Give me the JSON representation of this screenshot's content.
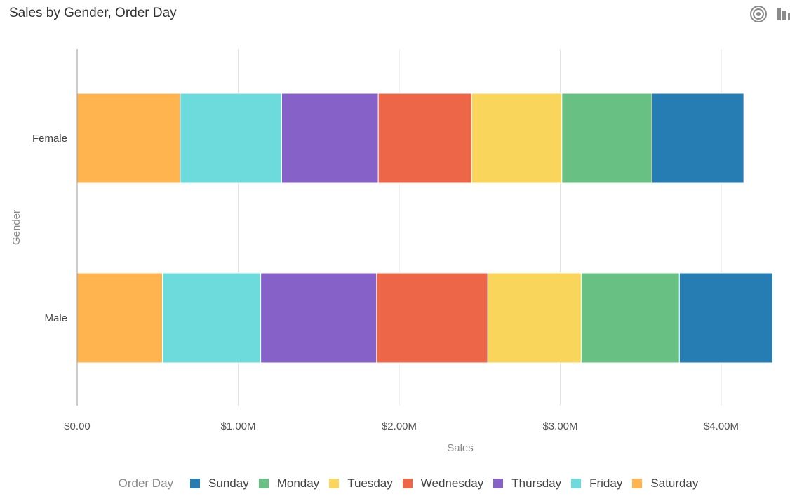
{
  "header": {
    "title": "Sales by Gender, Order Day",
    "target_icon": "target-icon",
    "bar_chart_icon": "bar-chart-icon"
  },
  "colors": {
    "Sunday": "#267db3",
    "Monday": "#68c182",
    "Tuesday": "#fad55c",
    "Wednesday": "#ed6647",
    "Thursday": "#8561c8",
    "Friday": "#6ddbdb",
    "Saturday": "#ffb44f",
    "grid": "#e3e3e3",
    "axis": "#999999"
  },
  "chart_data": {
    "type": "bar",
    "orientation": "horizontal",
    "stacked": true,
    "title": "Sales by Gender, Order Day",
    "xlabel": "Sales",
    "ylabel": "Gender",
    "categories": [
      "Female",
      "Male"
    ],
    "xlim": [
      0,
      4.2
    ],
    "x_unit": "millions",
    "x_ticks": [
      0,
      1,
      2,
      3,
      4
    ],
    "x_tick_labels": [
      "$0.00",
      "$1.00M",
      "$2.00M",
      "$3.00M",
      "$4.00M"
    ],
    "grid": true,
    "legend_title": "Order Day",
    "legend_position": "bottom",
    "series": [
      {
        "name": "Saturday",
        "values": [
          0.64,
          0.53
        ]
      },
      {
        "name": "Friday",
        "values": [
          0.63,
          0.61
        ]
      },
      {
        "name": "Thursday",
        "values": [
          0.6,
          0.72
        ]
      },
      {
        "name": "Wednesday",
        "values": [
          0.58,
          0.69
        ]
      },
      {
        "name": "Tuesday",
        "values": [
          0.56,
          0.58
        ]
      },
      {
        "name": "Monday",
        "values": [
          0.56,
          0.61
        ]
      },
      {
        "name": "Sunday",
        "values": [
          0.57,
          0.58
        ]
      }
    ],
    "legend_order": [
      "Sunday",
      "Monday",
      "Tuesday",
      "Wednesday",
      "Thursday",
      "Friday",
      "Saturday"
    ]
  }
}
